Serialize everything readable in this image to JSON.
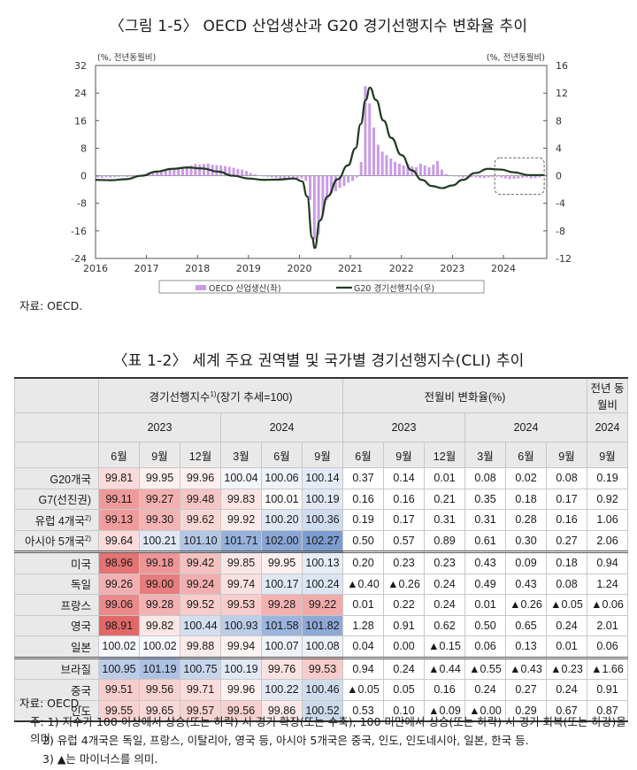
{
  "figure": {
    "title": "〈그림 1-5〉 OECD 산업생산과 G20 경기선행지수 변화율 추이",
    "left_unit": "(%, 전년동월비)",
    "right_unit": "(%, 전년동월비)",
    "source": "자료: OECD.",
    "legend_bar": "OECD 산업생산(좌)",
    "legend_line": "G20 경기선행지수(우)",
    "colors": {
      "bar": "#c99be6",
      "line": "#1e3a1e",
      "highlight_box": "#666666"
    }
  },
  "chart_data": {
    "type": "bar+line",
    "x_tick_labels": [
      "2016",
      "2017",
      "2018",
      "2019",
      "2020",
      "2021",
      "2022",
      "2023",
      "2024"
    ],
    "y_left": {
      "ticks": [
        32,
        24,
        16,
        8,
        0,
        -8,
        -16,
        -24
      ],
      "range": [
        -24,
        32
      ]
    },
    "y_right": {
      "ticks": [
        16,
        12,
        8,
        4,
        0,
        -4,
        -8,
        -12
      ],
      "range": [
        -12,
        16
      ]
    },
    "bar_start": "2016-01",
    "series": [
      {
        "name": "OECD 산업생산(좌)",
        "kind": "bar",
        "axis": "left",
        "values": [
          -0.5,
          -0.6,
          -0.4,
          -0.5,
          -0.4,
          -0.3,
          -0.2,
          -0.4,
          -0.3,
          -0.1,
          0.1,
          0.4,
          1.0,
          1.1,
          1.4,
          1.3,
          1.6,
          1.8,
          2.0,
          2.4,
          2.6,
          2.8,
          3.0,
          3.4,
          3.2,
          3.4,
          3.5,
          3.2,
          3.1,
          3.0,
          2.8,
          2.6,
          2.3,
          2.0,
          1.8,
          1.4,
          0.8,
          0.4,
          0.1,
          -0.2,
          -0.3,
          -0.5,
          -0.6,
          -0.8,
          -0.9,
          -1.0,
          -1.1,
          -1.0,
          -0.8,
          -1.5,
          -7.0,
          -18.5,
          -17.0,
          -11.0,
          -7.0,
          -5.0,
          -4.5,
          -3.5,
          -3.0,
          -2.0,
          -1.5,
          -0.5,
          4.0,
          26.0,
          21.0,
          14.0,
          9.0,
          7.0,
          6.0,
          5.0,
          4.0,
          3.5,
          3.0,
          3.4,
          2.8,
          2.5,
          3.5,
          3.0,
          2.5,
          3.2,
          4.3,
          1.8,
          0.5,
          0.2,
          0.0,
          -0.3,
          -0.5,
          -0.6,
          -0.4,
          -0.5,
          -0.6,
          -0.7,
          -0.5,
          -0.4,
          -0.3,
          -0.5,
          -0.8,
          -1.0,
          -0.9,
          -0.8,
          -0.6,
          -0.5,
          -0.8,
          -0.7,
          -0.5
        ]
      },
      {
        "name": "G20 경기선행지수(우)",
        "kind": "line",
        "axis": "right",
        "points": [
          [
            2016.0,
            -0.6
          ],
          [
            2016.3,
            -0.65
          ],
          [
            2016.6,
            -0.5
          ],
          [
            2016.9,
            0.0
          ],
          [
            2017.2,
            0.6
          ],
          [
            2017.5,
            1.0
          ],
          [
            2017.8,
            1.2
          ],
          [
            2018.1,
            1.05
          ],
          [
            2018.4,
            0.6
          ],
          [
            2018.7,
            0.0
          ],
          [
            2019.0,
            -0.4
          ],
          [
            2019.3,
            -0.6
          ],
          [
            2019.6,
            -0.55
          ],
          [
            2019.9,
            -0.4
          ],
          [
            2020.05,
            -0.8
          ],
          [
            2020.15,
            -3.0
          ],
          [
            2020.25,
            -9.0
          ],
          [
            2020.3,
            -10.5
          ],
          [
            2020.4,
            -6.5
          ],
          [
            2020.55,
            -3.0
          ],
          [
            2020.75,
            -0.5
          ],
          [
            2020.95,
            1.5
          ],
          [
            2021.1,
            4.0
          ],
          [
            2021.2,
            7.5
          ],
          [
            2021.3,
            11.0
          ],
          [
            2021.38,
            12.8
          ],
          [
            2021.5,
            11.0
          ],
          [
            2021.65,
            8.0
          ],
          [
            2021.8,
            5.5
          ],
          [
            2022.0,
            3.0
          ],
          [
            2022.2,
            0.8
          ],
          [
            2022.4,
            -0.6
          ],
          [
            2022.6,
            -1.5
          ],
          [
            2022.8,
            -1.8
          ],
          [
            2023.0,
            -1.4
          ],
          [
            2023.2,
            -0.6
          ],
          [
            2023.45,
            0.4
          ],
          [
            2023.7,
            1.0
          ],
          [
            2023.95,
            0.9
          ],
          [
            2024.2,
            0.5
          ],
          [
            2024.5,
            0.1
          ],
          [
            2024.8,
            0.1
          ]
        ]
      }
    ]
  },
  "table": {
    "title": "〈표 1-2〉 세계 주요 권역별 및 국가별 경기선행지수(CLI) 추이",
    "group_cli": "경기선행지수",
    "group_cli_sup": "1)",
    "group_cli_suffix": "(장기 추세=100)",
    "group_mom": "전월비 변화율(%)",
    "group_yoy": "전년 동월비",
    "year_2023": "2023",
    "year_2024": "2024",
    "yoy_year": "2024",
    "month_headers": [
      "6월",
      "9월",
      "12월",
      "3월",
      "6월",
      "9월",
      "6월",
      "9월",
      "12월",
      "3월",
      "6월",
      "9월",
      "9월"
    ],
    "rows": [
      {
        "label": "G20개국",
        "sup": "",
        "values": [
          "99.81",
          "99.95",
          "99.96",
          "100.04",
          "100.06",
          "100.14",
          "0.37",
          "0.14",
          "0.01",
          "0.08",
          "0.02",
          "0.08",
          "0.19"
        ],
        "bg": [
          "#fadada",
          "#fdf0f0",
          "#fdf0f0",
          "#f4f6fb",
          "#eef2f9",
          "#e4ebf6"
        ]
      },
      {
        "label": "G7(선진권)",
        "sup": "",
        "values": [
          "99.11",
          "99.27",
          "99.48",
          "99.83",
          "100.01",
          "100.19",
          " 0.16",
          "0.16",
          "0.21",
          "0.35",
          "0.18",
          "0.17",
          "0.92"
        ],
        "bg": [
          "#ef9a9a",
          "#f3b0b0",
          "#f6c6c6",
          "#fbe4e4",
          "#fafafa",
          "#e2e9f5"
        ]
      },
      {
        "label": "유럽 4개국",
        "sup": "2)",
        "values": [
          "99.13",
          "99.30",
          "99.62",
          "99.92",
          "100.20",
          "100.36",
          "0.19",
          "0.17",
          "0.31",
          "0.31",
          "0.28",
          "0.16",
          "1.06"
        ],
        "bg": [
          "#f09c9c",
          "#f4b4b4",
          "#f9d6d6",
          "#fcecec",
          "#dfe7f4",
          "#cfdbee"
        ]
      },
      {
        "label": "아시아 5개국",
        "sup": "2)",
        "values": [
          "99.64",
          "100.21",
          "101.10",
          "101.71",
          "102.00",
          "102.27",
          "0.50",
          "0.57",
          "0.89",
          "0.61",
          "0.30",
          "0.27",
          "2.06"
        ],
        "bg": [
          "#fadada",
          "#e0e8f4",
          "#b3c6e5",
          "#97b1da",
          "#89a6d4",
          "#7d9dd0"
        ]
      },
      {
        "label": "미국",
        "sup": "",
        "values": [
          "98.96",
          "99.18",
          "99.42",
          "99.85",
          "99.95",
          "100.13",
          "0.20",
          "0.23",
          "0.23",
          "0.43",
          "0.09",
          "0.18",
          "0.94"
        ],
        "bg": [
          "#e57373",
          "#ee9696",
          "#f5c0c0",
          "#fbe6e6",
          "#fdf0f0",
          "#e7edf7"
        ]
      },
      {
        "label": "독일",
        "sup": "",
        "values": [
          "99.26",
          "99.00",
          "99.24",
          "99.74",
          "100.17",
          "100.24",
          "▲0.40",
          "▲0.26",
          "0.24",
          "0.49",
          "0.43",
          "0.08",
          "1.24"
        ],
        "bg": [
          "#f3b0b0",
          "#e77d7d",
          "#f2aeae",
          "#fbe0e0",
          "#e0e8f4",
          "#dce5f3"
        ]
      },
      {
        "label": "프랑스",
        "sup": "",
        "values": [
          "99.06",
          "99.28",
          "99.52",
          "99.53",
          "99.28",
          "99.22",
          "0.01",
          "0.22",
          "0.24",
          "0.01",
          "▲0.26",
          "▲0.05",
          "▲0.06"
        ],
        "bg": [
          "#ea8a8a",
          "#f3b2b2",
          "#f7cccc",
          "#f7cccc",
          "#f3b2b2",
          "#f1aaaa"
        ]
      },
      {
        "label": "영국",
        "sup": "",
        "values": [
          "98.91",
          "99.82",
          "100.44",
          "100.93",
          "101.58",
          "101.82",
          "1.28",
          "0.91",
          "0.62",
          "0.50",
          "0.65",
          "0.24",
          "2.01"
        ],
        "bg": [
          "#e26868",
          "#fbe6e6",
          "#d3def0",
          "#bccde8",
          "#9cb5dc",
          "#8ea9d6"
        ]
      },
      {
        "label": "일본",
        "sup": "",
        "values": [
          "100.02",
          "100.02",
          "99.88",
          "99.94",
          "100.07",
          "100.08",
          "0.04",
          "0.00",
          "▲0.15",
          "0.06",
          "0.13",
          "0.01",
          "0.06"
        ],
        "bg": [
          "#f6f8fc",
          "#f6f8fc",
          "#fbeaea",
          "#fdf2f2",
          "#eef2f9",
          "#edf1f8"
        ]
      },
      {
        "label": "브라질",
        "sup": "",
        "values": [
          "100.95",
          "101.19",
          "100.75",
          "100.19",
          "99.76",
          "99.53",
          "0.94",
          "0.24",
          "▲0.44",
          "▲0.55",
          "▲0.43",
          "▲0.23",
          "▲1.66"
        ],
        "bg": [
          "#bccde8",
          "#adc1e3",
          "#c7d6ec",
          "#e2e9f5",
          "#fbe2e2",
          "#f7cccc"
        ]
      },
      {
        "label": "중국",
        "sup": "",
        "values": [
          "99.51",
          "99.56",
          "99.71",
          "99.96",
          "100.22",
          "100.46",
          "▲0.05",
          "0.05",
          "0.16",
          "0.24",
          "0.27",
          "0.24",
          "0.91"
        ],
        "bg": [
          "#f7cccc",
          "#f8d2d2",
          "#fadcdc",
          "#fdf1f1",
          "#e0e8f4",
          "#d0dcee"
        ]
      },
      {
        "label": "인도",
        "sup": "",
        "values": [
          "99.55",
          "99.65",
          "99.57",
          "99.56",
          "99.86",
          "100.52",
          "0.53",
          "0.10",
          "▲0.09",
          "▲0.00",
          "0.29",
          "0.67",
          "0.87"
        ],
        "bg": [
          "#f8d0d0",
          "#f9d8d8",
          "#f8d2d2",
          "#f8d0d0",
          "#fce8e8",
          "#ccd9ed"
        ]
      }
    ],
    "source": "자료: OECD.",
    "notes": [
      "주: 1) 지수가 100 이상에서 상승(또는 하락) 시 경기 확장(또는 수축), 100 미만에서 상승(또는 하락) 시 경기 회복(또는 하강)을 의미.",
      "2) 유럽 4개국은 독일, 프랑스, 이탈리아, 영국 등, 아시아 5개국은 중국, 인도, 인도네시아, 일본, 한국 등.",
      "3) ▲는 마이너스를 의미."
    ]
  }
}
